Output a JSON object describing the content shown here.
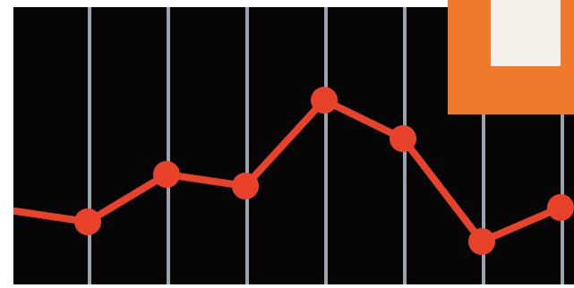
{
  "chart_data": {
    "type": "line",
    "categories": [
      null,
      null,
      null,
      null,
      null,
      null,
      null,
      null
    ],
    "series": [
      {
        "color": "#e8432a",
        "values": [
          65,
          52,
          105,
          92,
          188,
          145,
          30,
          68
        ]
      }
    ],
    "grid": true
  }
}
